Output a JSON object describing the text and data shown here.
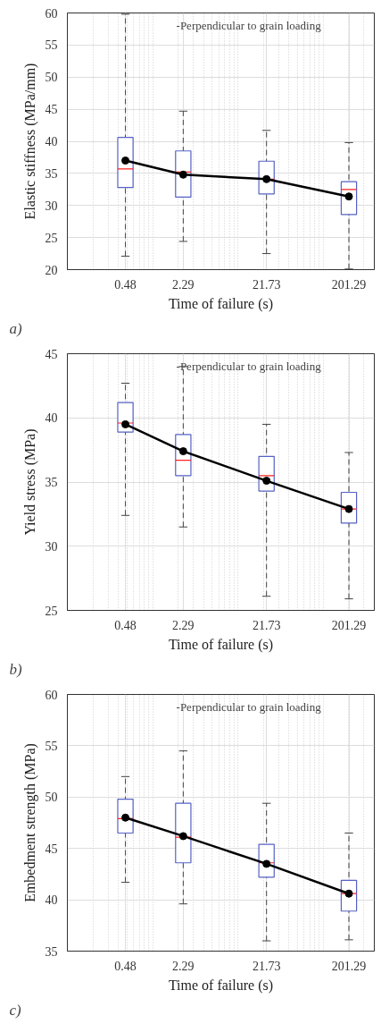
{
  "chart_data": [
    {
      "type": "box",
      "x": [
        0.48,
        2.29,
        21.73,
        201.29
      ],
      "xlim": [
        0.1,
        400
      ],
      "xticks": [
        0.48,
        2.29,
        21.73,
        201.29
      ],
      "ylim": [
        20,
        60
      ],
      "yticks": [
        20,
        25,
        30,
        35,
        40,
        45,
        50,
        55,
        60
      ],
      "log": "x",
      "grid": true,
      "marker": "circle",
      "line_style": "solid",
      "xlabel": "Time of failure (s)",
      "ylabel": "Elastic stiffness (MPa/mm)",
      "annotations": [
        "-Perpendicular to grain loading",
        "a)"
      ],
      "series": [
        {
          "color": "#5562c4",
          "boxes": [
            {
              "low": 22.1,
              "q1": 32.8,
              "median": 35.7,
              "q3": 40.6,
              "high": 59.8
            },
            {
              "low": 24.4,
              "q1": 31.3,
              "median": 35.2,
              "q3": 38.5,
              "high": 44.7
            },
            {
              "low": 22.5,
              "q1": 31.8,
              "median": 34.1,
              "q3": 36.9,
              "high": 41.7
            },
            {
              "low": 20.1,
              "q1": 28.6,
              "median": 32.5,
              "q3": 33.7,
              "high": 39.8
            }
          ]
        },
        {
          "type": "line",
          "color": "#000000",
          "values": [
            37.0,
            34.8,
            34.1,
            31.4
          ]
        }
      ]
    },
    {
      "type": "box",
      "x": [
        0.48,
        2.29,
        21.73,
        201.29
      ],
      "xlim": [
        0.1,
        400
      ],
      "xticks": [
        0.48,
        2.29,
        21.73,
        201.29
      ],
      "ylim": [
        25,
        45
      ],
      "yticks": [
        25,
        30,
        35,
        40,
        45
      ],
      "log": "x",
      "grid": true,
      "marker": "circle",
      "line_style": "solid",
      "xlabel": "Time of failure (s)",
      "ylabel": "Yield stress (MPa)",
      "annotations": [
        "-Perpendicular to grain loading",
        "b)"
      ],
      "series": [
        {
          "color": "#5562c4",
          "boxes": [
            {
              "low": 32.4,
              "q1": 38.9,
              "median": 39.6,
              "q3": 41.2,
              "high": 42.7
            },
            {
              "low": 31.5,
              "q1": 35.5,
              "median": 36.7,
              "q3": 38.7,
              "high": 44.0
            },
            {
              "low": 26.1,
              "q1": 34.3,
              "median": 35.5,
              "q3": 37.0,
              "high": 39.5
            },
            {
              "low": 25.9,
              "q1": 31.8,
              "median": 32.9,
              "q3": 34.2,
              "high": 37.3
            }
          ]
        },
        {
          "type": "line",
          "color": "#000000",
          "values": [
            39.5,
            37.4,
            35.1,
            32.9
          ]
        }
      ]
    },
    {
      "type": "box",
      "x": [
        0.48,
        2.29,
        21.73,
        201.29
      ],
      "xlim": [
        0.1,
        400
      ],
      "xticks": [
        0.48,
        2.29,
        21.73,
        201.29
      ],
      "ylim": [
        35,
        60
      ],
      "yticks": [
        35,
        40,
        45,
        50,
        55,
        60
      ],
      "log": "x",
      "grid": true,
      "marker": "circle",
      "line_style": "solid",
      "xlabel": "Time of failure (s)",
      "ylabel": "Embedment strength (MPa)",
      "annotations": [
        "-Perpendicular to grain loading",
        "c)"
      ],
      "series": [
        {
          "color": "#5562c4",
          "boxes": [
            {
              "low": 41.7,
              "q1": 46.5,
              "median": 47.9,
              "q3": 49.8,
              "high": 52.0
            },
            {
              "low": 39.6,
              "q1": 43.6,
              "median": 46.1,
              "q3": 49.4,
              "high": 54.5
            },
            {
              "low": 36.0,
              "q1": 42.2,
              "median": 43.6,
              "q3": 45.4,
              "high": 49.4
            },
            {
              "low": 36.1,
              "q1": 38.9,
              "median": 40.6,
              "q3": 41.9,
              "high": 46.5
            }
          ]
        },
        {
          "type": "line",
          "color": "#000000",
          "values": [
            48.0,
            46.2,
            43.5,
            40.6
          ]
        }
      ]
    }
  ]
}
